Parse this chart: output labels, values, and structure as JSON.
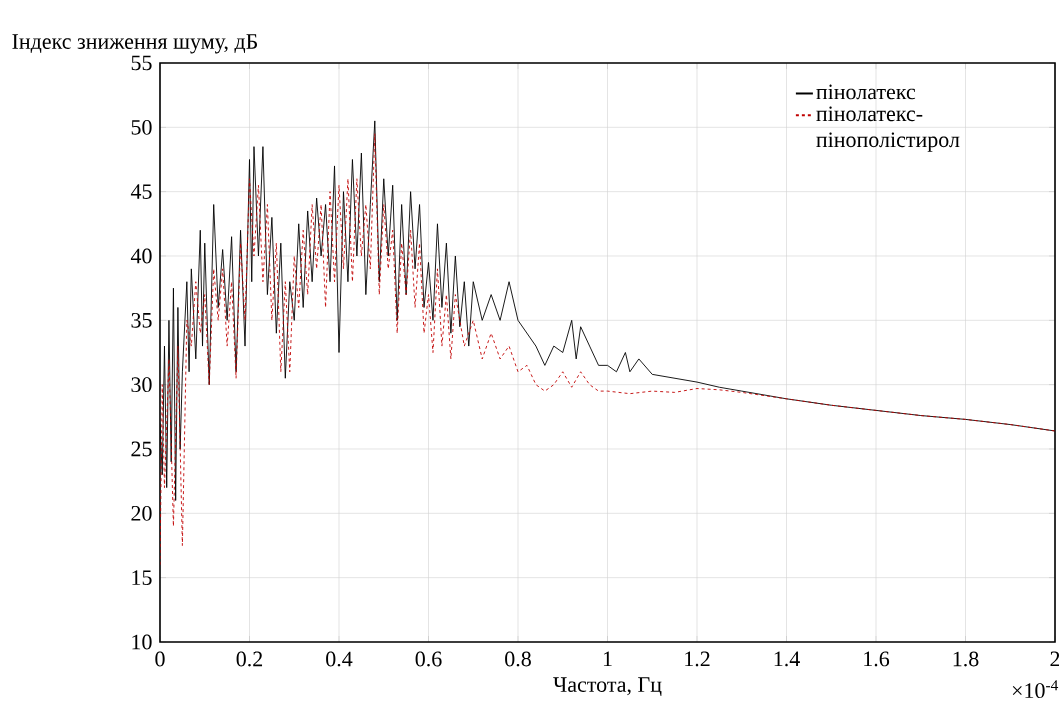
{
  "chart_data": {
    "type": "line",
    "xlabel": "Частота, Гц",
    "ylabel": "Індекс зниження шуму, дБ",
    "annotations": [
      "×10$^{-4}$"
    ],
    "xlim": [
      0,
      2
    ],
    "ylim": [
      10,
      55
    ],
    "xticks": [
      0,
      0.2,
      0.4,
      0.6,
      0.8,
      1,
      1.2,
      1.4,
      1.6,
      1.8,
      2
    ],
    "yticks": [
      10,
      15,
      20,
      25,
      30,
      35,
      40,
      45,
      50,
      55
    ],
    "grid": true,
    "legend": "top right",
    "marker": "none",
    "series": [
      {
        "name": "пінолатекс",
        "color": "#000000",
        "line_style": "solid",
        "x": [
          0,
          0.005,
          0.01,
          0.015,
          0.02,
          0.025,
          0.03,
          0.035,
          0.04,
          0.045,
          0.05,
          0.06,
          0.065,
          0.07,
          0.08,
          0.09,
          0.095,
          0.1,
          0.11,
          0.12,
          0.13,
          0.14,
          0.15,
          0.16,
          0.17,
          0.18,
          0.19,
          0.2,
          0.205,
          0.21,
          0.22,
          0.23,
          0.24,
          0.25,
          0.26,
          0.27,
          0.28,
          0.29,
          0.3,
          0.31,
          0.32,
          0.33,
          0.34,
          0.35,
          0.36,
          0.37,
          0.38,
          0.39,
          0.4,
          0.41,
          0.42,
          0.43,
          0.44,
          0.45,
          0.46,
          0.47,
          0.48,
          0.49,
          0.5,
          0.51,
          0.52,
          0.53,
          0.54,
          0.55,
          0.56,
          0.57,
          0.58,
          0.59,
          0.6,
          0.61,
          0.62,
          0.63,
          0.64,
          0.65,
          0.66,
          0.67,
          0.68,
          0.69,
          0.7,
          0.72,
          0.74,
          0.76,
          0.78,
          0.8,
          0.82,
          0.84,
          0.86,
          0.88,
          0.9,
          0.92,
          0.93,
          0.94,
          0.96,
          0.98,
          1.0,
          1.02,
          1.04,
          1.05,
          1.07,
          1.1,
          1.15,
          1.2,
          1.25,
          1.3,
          1.4,
          1.5,
          1.6,
          1.7,
          1.8,
          1.9,
          2.0
        ],
        "values": [
          27,
          23,
          33,
          22,
          35,
          24,
          37.5,
          21,
          36,
          25,
          31,
          38,
          31,
          39,
          32,
          42,
          33,
          41,
          30,
          44,
          36,
          40.5,
          35,
          41.5,
          31,
          42,
          33,
          47.5,
          38,
          48.5,
          40,
          48.5,
          37,
          43,
          34,
          41,
          30.5,
          38,
          35,
          42.5,
          36,
          43.5,
          38,
          44.5,
          40,
          44,
          38,
          47,
          32.5,
          45,
          38,
          47.5,
          40,
          48,
          37,
          44,
          50.5,
          38,
          46,
          40,
          45.5,
          35,
          44,
          37,
          45,
          39,
          44,
          36,
          39.5,
          35,
          42.5,
          36,
          41,
          34,
          40,
          34.5,
          38,
          33,
          38,
          35,
          37,
          35,
          38,
          35,
          34,
          33,
          31.5,
          33,
          32.5,
          35,
          32,
          34.5,
          33,
          31.5,
          31.5,
          31,
          32.5,
          31,
          32,
          30.8,
          30.5,
          30.2,
          29.8,
          29.5,
          28.9,
          28.4,
          28,
          27.6,
          27.3,
          26.9,
          26.4
        ]
      },
      {
        "name": "пінолатекс-пінополістирол",
        "color": "#c00000",
        "line_style": "dashed",
        "x": [
          0,
          0.005,
          0.01,
          0.02,
          0.03,
          0.04,
          0.05,
          0.06,
          0.07,
          0.08,
          0.09,
          0.1,
          0.11,
          0.12,
          0.13,
          0.14,
          0.15,
          0.16,
          0.17,
          0.18,
          0.19,
          0.2,
          0.21,
          0.22,
          0.23,
          0.24,
          0.25,
          0.26,
          0.27,
          0.28,
          0.29,
          0.3,
          0.31,
          0.32,
          0.33,
          0.34,
          0.35,
          0.36,
          0.37,
          0.38,
          0.39,
          0.4,
          0.41,
          0.42,
          0.43,
          0.44,
          0.45,
          0.46,
          0.47,
          0.48,
          0.49,
          0.5,
          0.51,
          0.52,
          0.53,
          0.54,
          0.55,
          0.56,
          0.57,
          0.58,
          0.59,
          0.6,
          0.61,
          0.62,
          0.63,
          0.64,
          0.65,
          0.66,
          0.68,
          0.7,
          0.72,
          0.74,
          0.76,
          0.78,
          0.8,
          0.82,
          0.84,
          0.86,
          0.88,
          0.9,
          0.92,
          0.94,
          0.96,
          0.98,
          1.0,
          1.05,
          1.1,
          1.15,
          1.2,
          1.25,
          1.3,
          1.4,
          1.5,
          1.6,
          1.7,
          1.8,
          1.9,
          2.0
        ],
        "values": [
          16,
          30,
          22,
          32,
          19,
          33,
          17.5,
          35,
          33,
          38,
          34,
          37,
          30,
          39,
          35,
          39,
          33,
          38,
          30.5,
          41,
          35,
          46,
          40,
          45.5,
          38,
          44,
          35,
          41,
          31,
          38,
          31,
          40,
          36,
          42,
          37,
          44,
          39,
          44,
          36,
          45,
          38,
          45.5,
          39,
          46,
          38,
          46,
          40,
          44,
          39,
          49.5,
          37,
          44,
          39,
          42,
          34,
          41,
          37,
          42,
          36,
          41,
          34,
          37,
          32.5,
          39,
          33,
          37,
          32,
          37,
          33,
          35,
          32,
          34,
          32,
          33,
          31,
          31.5,
          30,
          29.5,
          30,
          31,
          29.8,
          31,
          30,
          29.5,
          29.5,
          29.3,
          29.5,
          29.4,
          29.7,
          29.6,
          29.4,
          28.9,
          28.4,
          28,
          27.6,
          27.3,
          26.9,
          26.4
        ]
      }
    ]
  }
}
